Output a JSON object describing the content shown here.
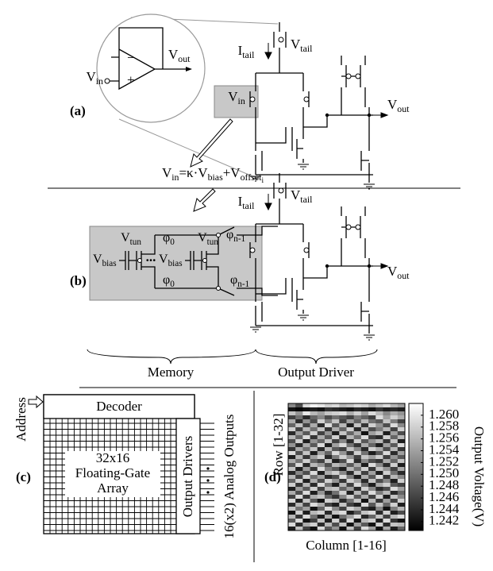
{
  "panel_a": {
    "label": "(a)",
    "opamp": {
      "minus": "−",
      "plus": "+",
      "input": [
        {
          "t": "V"
        },
        {
          "s": "in"
        }
      ],
      "output": [
        {
          "t": "V"
        },
        {
          "s": "out"
        }
      ]
    },
    "i_tail": [
      {
        "t": "I"
      },
      {
        "s": "tail"
      }
    ],
    "v_tail": [
      {
        "t": "V"
      },
      {
        "s": "tail"
      }
    ],
    "v_in": [
      {
        "t": "V"
      },
      {
        "s": "in"
      }
    ],
    "v_out": [
      {
        "t": "V"
      },
      {
        "s": "out"
      }
    ]
  },
  "equation": [
    {
      "t": "V"
    },
    {
      "s": "in"
    },
    {
      "t": "=κ·V"
    },
    {
      "s": "bias"
    },
    {
      "t": "+V"
    },
    {
      "s": "offset"
    },
    {
      "ss": "i"
    }
  ],
  "panel_b": {
    "label": "(b)",
    "i_tail": [
      {
        "t": "I"
      },
      {
        "s": "tail"
      }
    ],
    "v_tail": [
      {
        "t": "V"
      },
      {
        "s": "tail"
      }
    ],
    "v_out": [
      {
        "t": "V"
      },
      {
        "s": "out"
      }
    ],
    "v_tun_1": [
      {
        "t": "V"
      },
      {
        "s": "tun"
      }
    ],
    "v_tun_2": [
      {
        "t": "V"
      },
      {
        "s": "tun"
      }
    ],
    "phi_0_top": [
      {
        "t": "φ"
      },
      {
        "s": "0"
      }
    ],
    "phi_n1_top": [
      {
        "t": "φ"
      },
      {
        "s": "n-1"
      }
    ],
    "v_bias_1": [
      {
        "t": "V"
      },
      {
        "s": "bias"
      }
    ],
    "ellipsis": "...",
    "v_bias_2": [
      {
        "t": "V"
      },
      {
        "s": "bias"
      }
    ],
    "phi_0_bottom": [
      {
        "t": "φ"
      },
      {
        "s": "0"
      }
    ],
    "phi_n1_bottom": [
      {
        "t": "φ"
      },
      {
        "s": "n-1"
      }
    ],
    "memory": "Memory",
    "output_driver": "Output Driver"
  },
  "panel_c": {
    "label": "(c)",
    "address": "Address",
    "decoder": "Decoder",
    "array": [
      "32x16",
      "Floating-Gate",
      "Array"
    ],
    "output_drivers": "Output Drivers",
    "outputs": "16(x2) Analog Outputs"
  },
  "chart_data": {
    "type": "heatmap",
    "label": "(d)",
    "xlabel": "Column [1-16]",
    "ylabel": "Row [1-32]",
    "colorbar_label": "Output Voltage(V)",
    "clim": [
      1.2405,
      1.262
    ],
    "cticks": [
      {
        "value": 1.26,
        "label": "1.260"
      },
      1.258,
      1.256,
      1.254,
      1.252,
      {
        "value": 1.25,
        "label": "1.250"
      },
      1.248,
      1.246,
      1.244,
      1.242
    ],
    "values": [
      [
        1.252,
        1.247,
        1.259,
        1.261,
        1.26,
        1.258,
        1.259,
        1.256,
        1.257,
        1.259,
        1.258,
        1.255,
        1.257,
        1.259,
        1.256,
        1.254
      ],
      [
        1.242,
        1.241,
        1.242,
        1.243,
        1.242,
        1.245,
        1.244,
        1.243,
        1.242,
        1.244,
        1.243,
        1.242,
        1.245,
        1.243,
        1.244,
        1.243
      ],
      [
        1.257,
        1.253,
        1.26,
        1.256,
        1.254,
        1.257,
        1.258,
        1.259,
        1.255,
        1.258,
        1.254,
        1.259,
        1.256,
        1.252,
        1.255,
        1.253
      ],
      [
        1.246,
        1.25,
        1.244,
        1.249,
        1.252,
        1.247,
        1.25,
        1.248,
        1.246,
        1.251,
        1.249,
        1.246,
        1.259,
        1.254,
        1.258,
        1.255
      ],
      [
        1.255,
        1.244,
        1.253,
        1.247,
        1.258,
        1.251,
        1.257,
        1.246,
        1.254,
        1.249,
        1.256,
        1.25,
        1.248,
        1.257,
        1.251,
        1.246
      ],
      [
        1.249,
        1.257,
        1.246,
        1.255,
        1.244,
        1.259,
        1.248,
        1.256,
        1.243,
        1.257,
        1.245,
        1.258,
        1.253,
        1.247,
        1.259,
        1.252
      ],
      [
        1.258,
        1.246,
        1.256,
        1.25,
        1.257,
        1.245,
        1.255,
        1.249,
        1.258,
        1.244,
        1.256,
        1.247,
        1.251,
        1.256,
        1.246,
        1.258
      ],
      [
        1.244,
        1.254,
        1.248,
        1.258,
        1.246,
        1.253,
        1.243,
        1.257,
        1.249,
        1.255,
        1.242,
        1.254,
        1.257,
        1.243,
        1.254,
        1.247
      ],
      [
        1.256,
        1.249,
        1.259,
        1.245,
        1.255,
        1.248,
        1.258,
        1.244,
        1.256,
        1.25,
        1.259,
        1.246,
        1.244,
        1.258,
        1.249,
        1.256
      ],
      [
        1.247,
        1.258,
        1.243,
        1.253,
        1.249,
        1.257,
        1.246,
        1.252,
        1.244,
        1.258,
        1.248,
        1.253,
        1.256,
        1.245,
        1.257,
        1.243
      ],
      [
        1.253,
        1.244,
        1.255,
        1.248,
        1.259,
        1.243,
        1.254,
        1.259,
        1.25,
        1.245,
        1.255,
        1.249,
        1.243,
        1.254,
        1.248,
        1.259
      ],
      [
        1.245,
        1.255,
        1.25,
        1.257,
        1.244,
        1.256,
        1.248,
        1.246,
        1.257,
        1.252,
        1.244,
        1.258,
        1.255,
        1.247,
        1.256,
        1.245
      ],
      [
        1.259,
        1.247,
        1.257,
        1.243,
        1.254,
        1.249,
        1.259,
        1.253,
        1.245,
        1.258,
        1.25,
        1.243,
        1.248,
        1.259,
        1.244,
        1.254
      ],
      [
        1.243,
        1.256,
        1.245,
        1.254,
        1.258,
        1.244,
        1.251,
        1.258,
        1.253,
        1.246,
        1.257,
        1.254,
        1.258,
        1.246,
        1.253,
        1.248
      ],
      [
        1.255,
        1.25,
        1.258,
        1.249,
        1.246,
        1.257,
        1.243,
        1.247,
        1.259,
        1.244,
        1.252,
        1.247,
        1.245,
        1.255,
        1.249,
        1.257
      ],
      [
        1.248,
        1.259,
        1.244,
        1.256,
        1.253,
        1.247,
        1.256,
        1.254,
        1.248,
        1.255,
        1.243,
        1.259,
        1.252,
        1.244,
        1.258,
        1.243
      ],
      [
        1.257,
        1.243,
        1.254,
        1.245,
        1.259,
        1.251,
        1.248,
        1.243,
        1.256,
        1.25,
        1.258,
        1.245,
        1.257,
        1.253,
        1.246,
        1.255
      ],
      [
        1.244,
        1.252,
        1.247,
        1.259,
        1.243,
        1.255,
        1.258,
        1.252,
        1.244,
        1.257,
        1.246,
        1.254,
        1.243,
        1.258,
        1.25,
        1.244
      ],
      [
        1.256,
        1.246,
        1.258,
        1.25,
        1.254,
        1.244,
        1.247,
        1.259,
        1.251,
        1.243,
        1.255,
        1.248,
        1.259,
        1.245,
        1.256,
        1.252
      ],
      [
        1.249,
        1.258,
        1.243,
        1.255,
        1.247,
        1.258,
        1.253,
        1.245,
        1.258,
        1.254,
        1.244,
        1.257,
        1.247,
        1.252,
        1.243,
        1.258
      ],
      [
        1.258,
        1.245,
        1.256,
        1.244,
        1.259,
        1.25,
        1.243,
        1.256,
        1.246,
        1.259,
        1.25,
        1.243,
        1.255,
        1.258,
        1.248,
        1.246
      ],
      [
        1.243,
        1.254,
        1.248,
        1.258,
        1.246,
        1.256,
        1.257,
        1.249,
        1.254,
        1.244,
        1.258,
        1.252,
        1.244,
        1.247,
        1.259,
        1.254
      ],
      [
        1.255,
        1.247,
        1.259,
        1.243,
        1.253,
        1.244,
        1.25,
        1.258,
        1.243,
        1.256,
        1.247,
        1.259,
        1.251,
        1.256,
        1.244,
        1.249
      ],
      [
        1.246,
        1.259,
        1.245,
        1.255,
        1.257,
        1.249,
        1.245,
        1.252,
        1.258,
        1.248,
        1.255,
        1.246,
        1.258,
        1.243,
        1.257,
        1.252
      ],
      [
        1.259,
        1.243,
        1.257,
        1.248,
        1.242,
        1.258,
        1.256,
        1.244,
        1.25,
        1.257,
        1.242,
        1.256,
        1.245,
        1.254,
        1.246,
        1.258
      ],
      [
        1.244,
        1.256,
        1.246,
        1.259,
        1.255,
        1.246,
        1.243,
        1.257,
        1.246,
        1.243,
        1.259,
        1.248,
        1.257,
        1.249,
        1.258,
        1.243
      ],
      [
        1.257,
        1.25,
        1.254,
        1.242,
        1.249,
        1.259,
        1.252,
        1.246,
        1.258,
        1.255,
        1.245,
        1.243,
        1.252,
        1.242,
        1.251,
        1.256
      ],
      [
        1.242,
        1.258,
        1.243,
        1.256,
        1.258,
        1.244,
        1.257,
        1.259,
        1.243,
        1.248,
        1.257,
        1.259,
        1.244,
        1.258,
        1.243,
        1.247
      ],
      [
        1.256,
        1.245,
        1.259,
        1.25,
        1.243,
        1.255,
        1.242,
        1.25,
        1.254,
        1.259,
        1.244,
        1.249,
        1.257,
        1.246,
        1.256,
        1.259
      ],
      [
        1.248,
        1.259,
        1.242,
        1.246,
        1.257,
        1.243,
        1.258,
        1.244,
        1.259,
        1.242,
        1.256,
        1.258,
        1.243,
        1.259,
        1.245,
        1.242
      ],
      [
        1.259,
        1.244,
        1.255,
        1.258,
        1.244,
        1.256,
        1.247,
        1.257,
        1.242,
        1.254,
        1.248,
        1.242,
        1.258,
        1.244,
        1.257,
        1.256
      ],
      [
        1.243,
        1.257,
        1.246,
        1.242,
        1.259,
        1.248,
        1.253,
        1.242,
        1.257,
        1.246,
        1.259,
        1.254,
        1.242,
        1.255,
        1.243,
        1.249
      ]
    ]
  }
}
